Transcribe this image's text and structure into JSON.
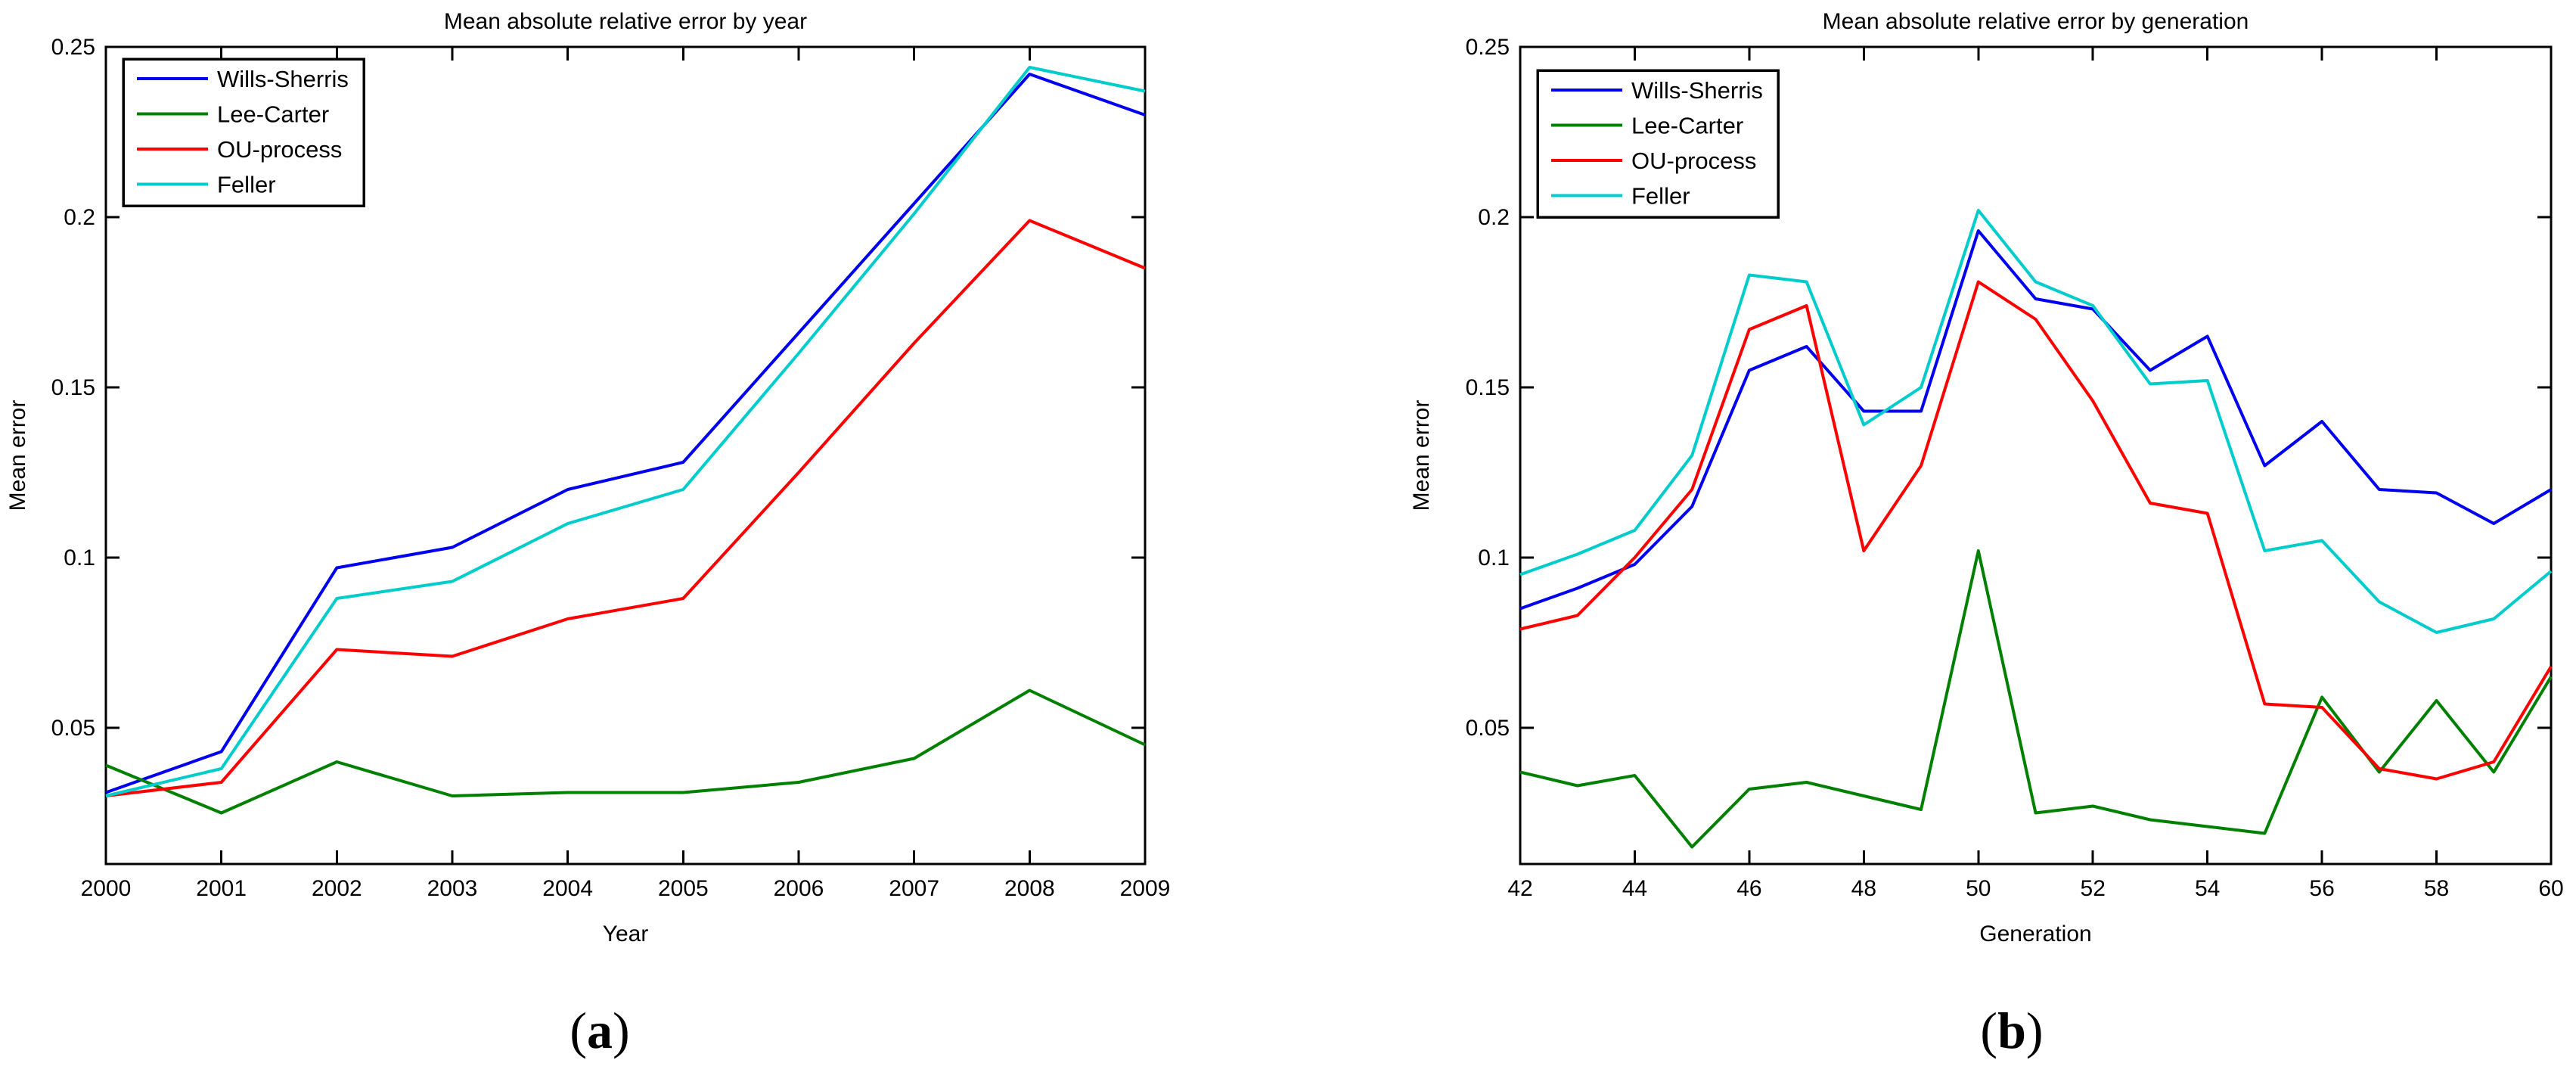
{
  "figure": {
    "background": "#ffffff",
    "axis_color": "#000000",
    "legend_labels": [
      "Wills-Sherris",
      "Lee-Carter",
      "OU-process",
      "Feller"
    ],
    "series_colors": [
      "#0000ee",
      "#008000",
      "#ff0000",
      "#00cccc"
    ]
  },
  "chart_data": [
    {
      "type": "line",
      "title": "Mean absolute relative error by year",
      "xlabel": "Year",
      "ylabel": "Mean error",
      "caption": "(a)",
      "grid": false,
      "legend_position": "upper-left",
      "xlim": [
        2000,
        2009
      ],
      "ylim": [
        0.01,
        0.25
      ],
      "x": [
        2000,
        2001,
        2002,
        2003,
        2004,
        2005,
        2006,
        2007,
        2008,
        2009
      ],
      "x_tick_labels": [
        "2000",
        "2001",
        "2002",
        "2003",
        "2004",
        "2005",
        "2006",
        "2007",
        "2008",
        "2009"
      ],
      "y_ticks": [
        0.05,
        0.1,
        0.15,
        0.2,
        0.25
      ],
      "y_tick_labels": [
        "0.05",
        "0.1",
        "0.15",
        "0.2",
        "0.25"
      ],
      "series": [
        {
          "name": "Wills-Sherris",
          "color": "#0000ee",
          "values": [
            0.031,
            0.043,
            0.097,
            0.103,
            0.12,
            0.128,
            0.166,
            0.204,
            0.242,
            0.23
          ]
        },
        {
          "name": "Lee-Carter",
          "color": "#008000",
          "values": [
            0.039,
            0.025,
            0.04,
            0.03,
            0.031,
            0.031,
            0.034,
            0.041,
            0.061,
            0.045
          ]
        },
        {
          "name": "OU-process",
          "color": "#ff0000",
          "values": [
            0.03,
            0.034,
            0.073,
            0.071,
            0.082,
            0.088,
            0.125,
            0.163,
            0.199,
            0.185
          ]
        },
        {
          "name": "Feller",
          "color": "#00cccc",
          "values": [
            0.03,
            0.038,
            0.088,
            0.093,
            0.11,
            0.12,
            0.16,
            0.201,
            0.244,
            0.237
          ]
        }
      ]
    },
    {
      "type": "line",
      "title": "Mean absolute relative error by generation",
      "xlabel": "Generation",
      "ylabel": "Mean error",
      "caption": "(b)",
      "grid": false,
      "legend_position": "upper-left",
      "xlim": [
        42,
        60
      ],
      "ylim": [
        0.01,
        0.25
      ],
      "x": [
        42,
        43,
        44,
        45,
        46,
        47,
        48,
        49,
        50,
        51,
        52,
        53,
        54,
        55,
        56,
        57,
        58,
        59,
        60
      ],
      "x_tick_labels": [
        "42",
        "44",
        "46",
        "48",
        "50",
        "52",
        "54",
        "56",
        "58",
        "60"
      ],
      "x_tick_values": [
        42,
        44,
        46,
        48,
        50,
        52,
        54,
        56,
        58,
        60
      ],
      "y_ticks": [
        0.05,
        0.1,
        0.15,
        0.2,
        0.25
      ],
      "y_tick_labels": [
        "0.05",
        "0.1",
        "0.15",
        "0.2",
        "0.25"
      ],
      "series": [
        {
          "name": "Wills-Sherris",
          "color": "#0000ee",
          "values": [
            0.085,
            0.091,
            0.098,
            0.115,
            0.155,
            0.162,
            0.143,
            0.143,
            0.196,
            0.176,
            0.173,
            0.155,
            0.165,
            0.127,
            0.14,
            0.12,
            0.119,
            0.11,
            0.12
          ]
        },
        {
          "name": "Lee-Carter",
          "color": "#008000",
          "values": [
            0.037,
            0.033,
            0.036,
            0.015,
            0.032,
            0.034,
            0.03,
            0.026,
            0.102,
            0.025,
            0.027,
            0.023,
            0.021,
            0.019,
            0.059,
            0.037,
            0.058,
            0.037,
            0.065
          ]
        },
        {
          "name": "OU-process",
          "color": "#ff0000",
          "values": [
            0.079,
            0.083,
            0.1,
            0.12,
            0.167,
            0.174,
            0.102,
            0.127,
            0.181,
            0.17,
            0.146,
            0.116,
            0.113,
            0.057,
            0.056,
            0.038,
            0.035,
            0.04,
            0.068
          ]
        },
        {
          "name": "Feller",
          "color": "#00cccc",
          "values": [
            0.095,
            0.101,
            0.108,
            0.13,
            0.183,
            0.181,
            0.139,
            0.15,
            0.202,
            0.181,
            0.174,
            0.151,
            0.152,
            0.102,
            0.105,
            0.087,
            0.078,
            0.082,
            0.096
          ]
        }
      ]
    }
  ]
}
